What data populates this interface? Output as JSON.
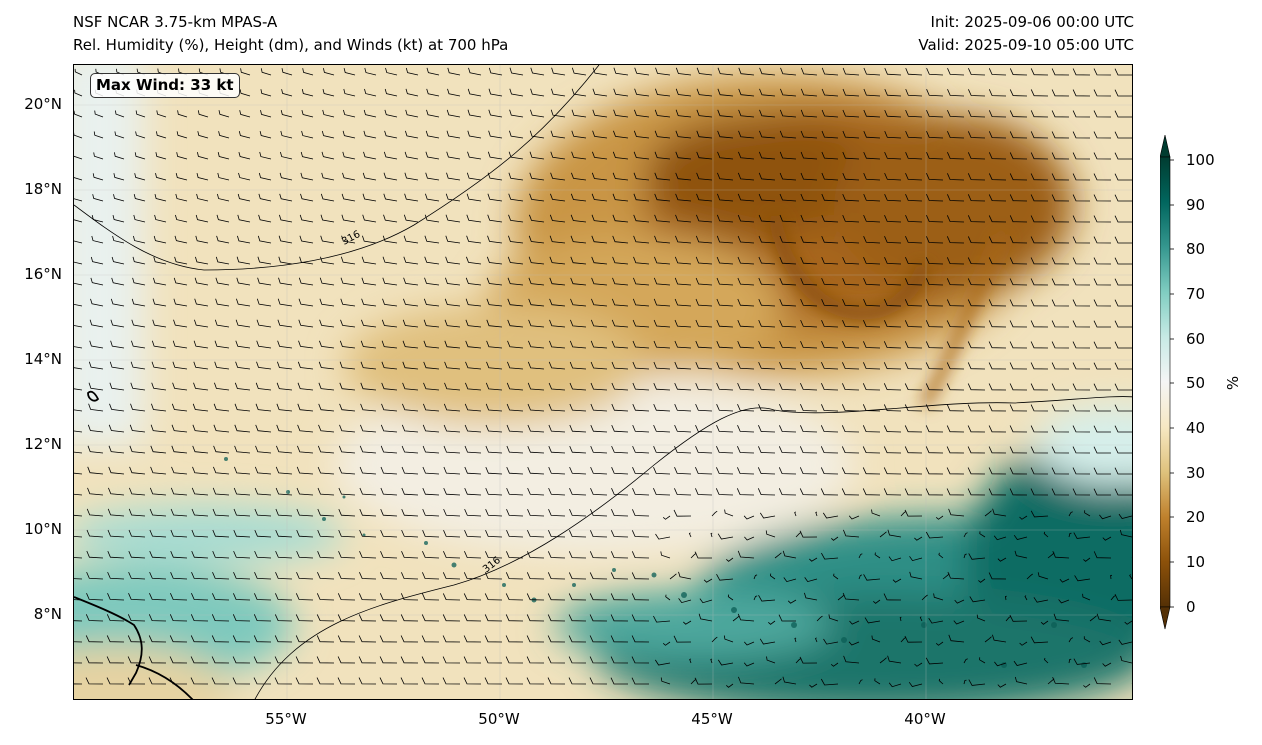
{
  "header": {
    "left_line1": "NSF NCAR 3.75-km MPAS-A",
    "left_line2": "Rel. Humidity (%), Height (dm), and Winds (kt) at 700 hPa",
    "right_line1": "Init: 2025-09-06 00:00 UTC",
    "right_line2": "Valid: 2025-09-10 05:00 UTC"
  },
  "map": {
    "max_wind_label": "Max Wind: 33 kt",
    "lat_labels": [
      "20°N",
      "18°N",
      "16°N",
      "14°N",
      "12°N",
      "10°N",
      "8°N"
    ],
    "lon_labels": [
      "55°W",
      "50°W",
      "45°W",
      "40°W"
    ],
    "contour_labels": [
      "316",
      "316"
    ]
  },
  "colorbar": {
    "tick_labels": [
      "100",
      "90",
      "80",
      "70",
      "60",
      "50",
      "40",
      "30",
      "20",
      "10",
      "0"
    ],
    "unit": "%",
    "colors": [
      "#543005",
      "#8c510a",
      "#bf812d",
      "#dfc27d",
      "#f6e8c3",
      "#f5f5f5",
      "#c7eae5",
      "#80cdc1",
      "#35978f",
      "#01665e",
      "#003c30"
    ]
  },
  "colors": {
    "dry": "#8c510a",
    "mid": "#f6e8c3",
    "moist": "#01665e"
  }
}
